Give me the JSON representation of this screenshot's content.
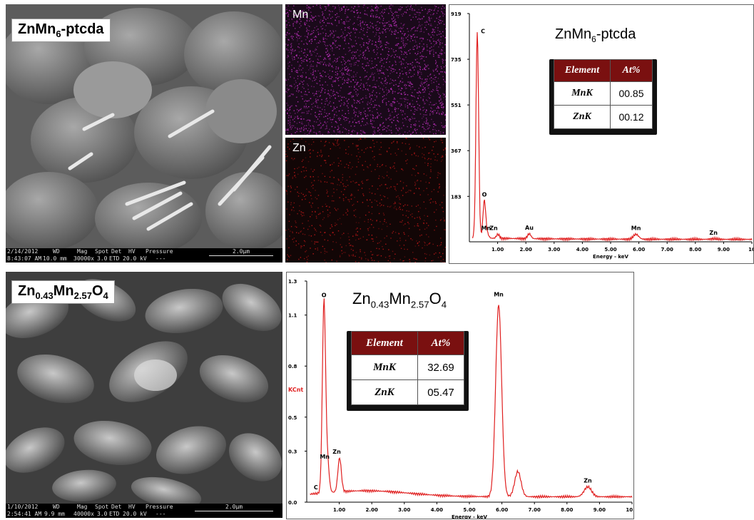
{
  "top": {
    "sem": {
      "label_main": "ZnMn",
      "label_sub": "6",
      "label_rest": "-ptcda",
      "bar": {
        "date": "2/14/2012",
        "time": "8:43:07 AM",
        "wd_label": "WD",
        "wd": "10.0 mm",
        "mag_label": "Mag",
        "mag": "30000x",
        "spot_label": "Spot",
        "spot": "3.0",
        "det_label": "Det",
        "det": "ETD",
        "hv_label": "HV",
        "hv": "20.0 kV",
        "pressure_label": "Pressure",
        "pressure": "---",
        "scale": "2.0μm"
      }
    },
    "map_mn": {
      "label": "Mn",
      "color": "#c030c0"
    },
    "map_zn": {
      "label": "Zn",
      "color": "#c01818"
    },
    "eds": {
      "title_main": "ZnMn",
      "title_sub": "6",
      "title_rest": "-ptcda",
      "table": {
        "headers": [
          "Element",
          "At%"
        ],
        "rows": [
          [
            "MnK",
            "00.85"
          ],
          [
            "ZnK",
            "00.12"
          ]
        ]
      },
      "x_label": "Energy - keV"
    }
  },
  "bottom": {
    "sem": {
      "label_parts": [
        "Zn",
        "0.43",
        "Mn",
        "2.57",
        "O",
        "4"
      ],
      "bar": {
        "date": "1/10/2012",
        "time": "2:54:41 AM",
        "wd_label": "WD",
        "wd": "9.9 mm",
        "mag_label": "Mag",
        "mag": "40000x",
        "spot_label": "Spot",
        "spot": "3.0",
        "det_label": "Det",
        "det": "ETD",
        "hv_label": "HV",
        "hv": "20.0 kV",
        "pressure_label": "Pressure",
        "pressure": "---",
        "scale": "2.0μm"
      }
    },
    "eds": {
      "title_parts": [
        "Zn",
        "0.43",
        "Mn",
        "2.57",
        "O",
        "4"
      ],
      "table": {
        "headers": [
          "Element",
          "At%"
        ],
        "rows": [
          [
            "MnK",
            "32.69"
          ],
          [
            "ZnK",
            "05.47"
          ]
        ]
      },
      "x_label": "Energy - keV",
      "y_label": "KCnt"
    }
  },
  "chart_data": [
    {
      "type": "line",
      "title": "ZnMn6-ptcda",
      "xlabel": "Energy - keV",
      "ylabel": "",
      "xlim": [
        0,
        10.0
      ],
      "ylim": [
        0,
        919
      ],
      "y_ticks": [
        "183",
        "367",
        "551",
        "735",
        "919"
      ],
      "x_ticks": [
        "1.00",
        "2.00",
        "3.00",
        "4.00",
        "5.00",
        "6.00",
        "7.00",
        "8.00",
        "9.00",
        "10"
      ],
      "line_color": "#e02020",
      "peaks": [
        {
          "label": "C",
          "x": 0.28,
          "y": 840
        },
        {
          "label": "O",
          "x": 0.53,
          "y": 165
        },
        {
          "label": "Mn",
          "x": 0.64,
          "y": 30
        },
        {
          "label": "Zn",
          "x": 1.01,
          "y": 30
        },
        {
          "label": "Au",
          "x": 2.12,
          "y": 32
        },
        {
          "label": "Mn",
          "x": 5.9,
          "y": 30
        },
        {
          "label": "Zn",
          "x": 8.64,
          "y": 12
        }
      ]
    },
    {
      "type": "line",
      "title": "Zn0.43Mn2.57O4",
      "xlabel": "Energy - keV",
      "ylabel": "KCnt",
      "xlim": [
        0,
        10.0
      ],
      "ylim": [
        0,
        1.3
      ],
      "y_ticks": [
        "0.0",
        "0.3",
        "0.5",
        "0.8",
        "1.1",
        "1.3"
      ],
      "x_ticks": [
        "1.00",
        "2.00",
        "3.00",
        "4.00",
        "5.00",
        "6.00",
        "7.00",
        "8.00",
        "9.00",
        "10.0"
      ],
      "line_color": "#e02020",
      "peaks": [
        {
          "label": "C",
          "x": 0.28,
          "y": 0.05
        },
        {
          "label": "O",
          "x": 0.53,
          "y": 1.18
        },
        {
          "label": "Mn",
          "x": 0.64,
          "y": 0.23
        },
        {
          "label": "Zn",
          "x": 1.01,
          "y": 0.26
        },
        {
          "label": "Mn",
          "x": 5.9,
          "y": 1.16
        },
        {
          "label": "",
          "x": 6.49,
          "y": 0.18
        },
        {
          "label": "Zn",
          "x": 8.64,
          "y": 0.09
        }
      ]
    }
  ]
}
